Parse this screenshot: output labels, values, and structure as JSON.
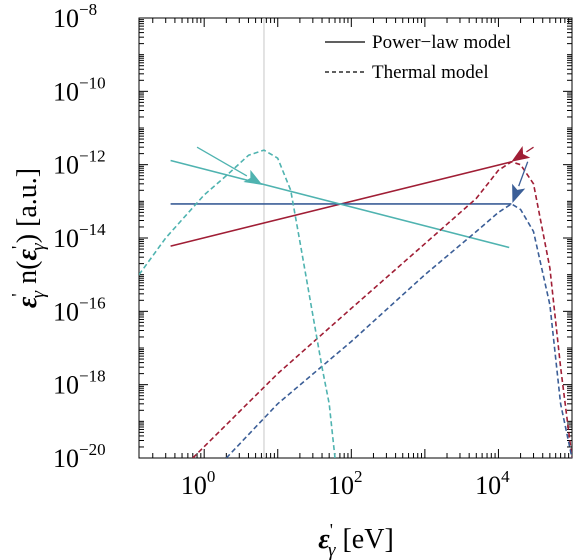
{
  "chart_data": {
    "type": "line",
    "x_scale": "log",
    "y_scale": "log",
    "xlim": [
      0.13,
      100000
    ],
    "ylim": [
      1e-20,
      1e-08
    ],
    "xlabel": "ε'γ [eV]",
    "ylabel": "ε'γ n(ε'γ) [a.u.]",
    "x_ticks": [
      {
        "base": "10",
        "exp": "0",
        "value": 1
      },
      {
        "base": "10",
        "exp": "2",
        "value": 100
      },
      {
        "base": "10",
        "exp": "4",
        "value": 10000
      }
    ],
    "y_ticks": [
      {
        "base": "10",
        "exp": "−8",
        "value": 1e-08
      },
      {
        "base": "10",
        "exp": "−10",
        "value": 1e-10
      },
      {
        "base": "10",
        "exp": "−12",
        "value": 1e-12
      },
      {
        "base": "10",
        "exp": "−14",
        "value": 1e-14
      },
      {
        "base": "10",
        "exp": "−16",
        "value": 1e-16
      },
      {
        "base": "10",
        "exp": "−18",
        "value": 1e-18
      },
      {
        "base": "10",
        "exp": "−20",
        "value": 1e-20
      }
    ],
    "legend": {
      "position": "top-right",
      "entries": [
        {
          "label": "Power−law model",
          "style": "solid"
        },
        {
          "label": "Thermal model",
          "style": "dashed"
        }
      ]
    },
    "vertical_line": {
      "x": 6.5,
      "color": "#c8c8c8"
    },
    "series": [
      {
        "color": "#a01e35",
        "style": "solid",
        "x": [
          0.35,
          15000
        ],
        "y": [
          6e-15,
          1.2e-12
        ]
      },
      {
        "color": "#3b5e97",
        "style": "solid",
        "x": [
          0.35,
          15000
        ],
        "y": [
          8.5e-14,
          8.5e-14
        ]
      },
      {
        "color": "#4fb3b0",
        "style": "solid",
        "x": [
          0.35,
          14000
        ],
        "y": [
          1.3e-12,
          5.5e-15
        ]
      },
      {
        "color": "#a01e35",
        "style": "dashed",
        "x": [
          0.7,
          10,
          100,
          1000,
          5000,
          10000,
          15000,
          20000,
          30000,
          50000,
          70000,
          100000
        ],
        "y": [
          1e-20,
          2e-18,
          1.2e-16,
          7e-15,
          1.2e-13,
          7e-13,
          1.2e-12,
          1e-12,
          3e-13,
          1.5e-15,
          3e-18,
          1e-20
        ]
      },
      {
        "color": "#3b5e97",
        "style": "dashed",
        "x": [
          2,
          10,
          100,
          1000,
          5000,
          10000,
          15000,
          20000,
          30000,
          50000,
          70000,
          100000
        ],
        "y": [
          1e-20,
          3e-19,
          1.5e-17,
          1e-15,
          1.5e-14,
          5e-14,
          8.5e-14,
          6e-14,
          1.5e-14,
          1.5e-16,
          3e-19,
          1e-20
        ]
      },
      {
        "color": "#4fb3b0",
        "style": "dashed",
        "x": [
          0.13,
          0.3,
          1,
          2,
          4,
          6.5,
          10,
          15,
          20,
          30,
          40,
          50,
          60
        ],
        "y": [
          1e-15,
          1e-14,
          1.5e-13,
          5e-13,
          1.8e-12,
          2.5e-12,
          1.5e-12,
          2e-13,
          8e-15,
          8e-17,
          3e-18,
          3e-19,
          1e-20
        ]
      }
    ],
    "arrows": [
      {
        "color": "#4fb3b0",
        "from": [
          0.8,
          3e-12
        ],
        "to": [
          6.2,
          2.8e-13
        ]
      },
      {
        "color": "#a01e35",
        "from": [
          30000,
          3e-12
        ],
        "to": [
          15000,
          1.2e-12
        ]
      },
      {
        "color": "#3b5e97",
        "from": [
          25000,
          1.2e-12
        ],
        "to": [
          15500,
          9e-14
        ]
      }
    ]
  }
}
